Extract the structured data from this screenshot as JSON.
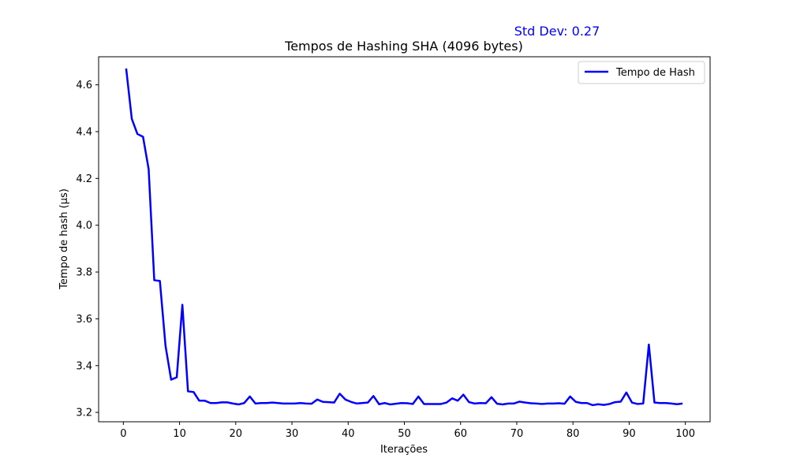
{
  "chart_data": {
    "type": "line",
    "title": "Tempos de Hashing SHA (4096 bytes)",
    "xlabel": "Iterações",
    "ylabel": "Tempo de hash (µs)",
    "annotation": "Std Dev: 0.27",
    "annotation_color": "#0000ff",
    "line_color": "#0000ff",
    "legend_position": "top-right",
    "grid": false,
    "xlim": [
      -4.4,
      104.4
    ],
    "ylim": [
      3.16,
      4.72
    ],
    "xticks": [
      0,
      10,
      20,
      30,
      40,
      50,
      60,
      70,
      80,
      90,
      100
    ],
    "yticks": [
      3.2,
      3.4,
      3.6,
      3.8,
      4.0,
      4.2,
      4.4,
      4.6
    ],
    "ytick_labels": [
      "3.2",
      "3.4",
      "3.6",
      "3.8",
      "4.0",
      "4.2",
      "4.4",
      "4.6"
    ],
    "series": [
      {
        "name": "Tempo de Hash",
        "x": [
          0.5,
          1.5,
          2.5,
          3.5,
          4.5,
          5.5,
          6.5,
          7.5,
          8.5,
          9.5,
          10.5,
          11.5,
          12.5,
          13.5,
          14.5,
          15.5,
          16.5,
          17.5,
          18.5,
          19.5,
          20.5,
          21.5,
          22.5,
          23.5,
          24.5,
          25.5,
          26.5,
          27.5,
          28.5,
          29.5,
          30.5,
          31.5,
          32.5,
          33.5,
          34.5,
          35.5,
          36.5,
          37.5,
          38.5,
          39.5,
          40.5,
          41.5,
          42.5,
          43.5,
          44.5,
          45.5,
          46.5,
          47.5,
          48.5,
          49.5,
          50.5,
          51.5,
          52.5,
          53.5,
          54.5,
          55.5,
          56.5,
          57.5,
          58.5,
          59.5,
          60.5,
          61.5,
          62.5,
          63.5,
          64.5,
          65.5,
          66.5,
          67.5,
          68.5,
          69.5,
          70.5,
          71.5,
          72.5,
          73.5,
          74.5,
          75.5,
          76.5,
          77.5,
          78.5,
          79.5,
          80.5,
          81.5,
          82.5,
          83.5,
          84.5,
          85.5,
          86.5,
          87.5,
          88.5,
          89.5,
          90.5,
          91.5,
          92.5,
          93.5,
          94.5,
          95.5,
          96.5,
          97.5,
          98.5,
          99.5
        ],
        "y": [
          4.67,
          4.455,
          4.39,
          4.378,
          4.24,
          3.765,
          3.762,
          3.485,
          3.34,
          3.35,
          3.66,
          3.29,
          3.287,
          3.25,
          3.25,
          3.24,
          3.24,
          3.243,
          3.243,
          3.238,
          3.234,
          3.24,
          3.268,
          3.238,
          3.24,
          3.24,
          3.242,
          3.24,
          3.238,
          3.238,
          3.238,
          3.24,
          3.238,
          3.237,
          3.255,
          3.245,
          3.244,
          3.242,
          3.28,
          3.255,
          3.245,
          3.238,
          3.24,
          3.242,
          3.27,
          3.235,
          3.24,
          3.234,
          3.237,
          3.24,
          3.239,
          3.236,
          3.268,
          3.236,
          3.236,
          3.236,
          3.236,
          3.242,
          3.26,
          3.25,
          3.276,
          3.244,
          3.238,
          3.24,
          3.239,
          3.265,
          3.237,
          3.234,
          3.238,
          3.238,
          3.246,
          3.242,
          3.239,
          3.238,
          3.236,
          3.238,
          3.238,
          3.239,
          3.237,
          3.268,
          3.245,
          3.24,
          3.24,
          3.231,
          3.235,
          3.232,
          3.236,
          3.244,
          3.246,
          3.285,
          3.242,
          3.236,
          3.238,
          3.49,
          3.242,
          3.24,
          3.24,
          3.238,
          3.235,
          3.238
        ]
      }
    ]
  }
}
